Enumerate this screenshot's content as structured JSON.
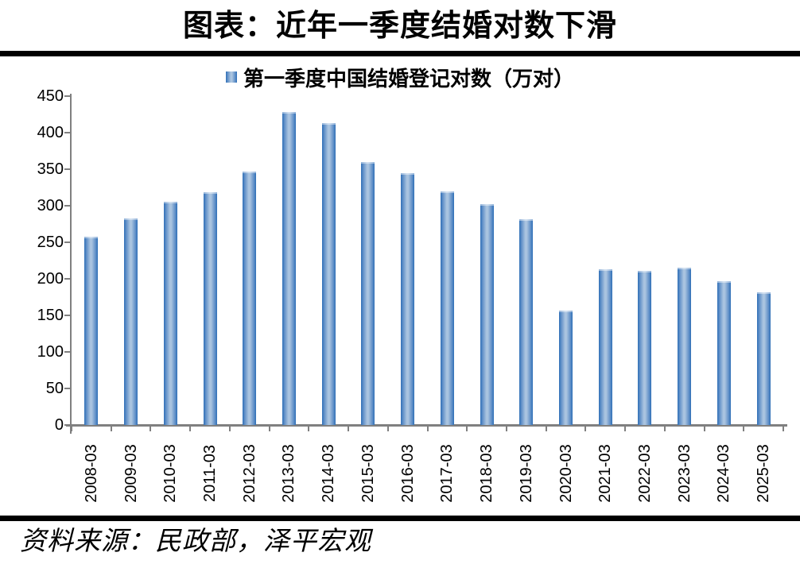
{
  "title": "图表：近年一季度结婚对数下滑",
  "legend": {
    "marker_icon": "blue-gradient-square",
    "label": "第一季度中国结婚登记对数（万对）"
  },
  "source": "资料来源：民政部，泽平宏观",
  "colors": {
    "bar_edge": "#2e6fb7",
    "bar_light": "#aac4e0",
    "bar_mid": "#5b8cc6",
    "axis": "#808080",
    "rule": "#000000",
    "text": "#000000",
    "background": "#ffffff"
  },
  "chart_data": {
    "type": "bar",
    "title": "图表：近年一季度结婚对数下滑",
    "legend_entries": [
      "第一季度中国结婚登记对数（万对）"
    ],
    "legend_position": "top",
    "grid": false,
    "xlabel": "",
    "ylabel": "",
    "ylim": [
      0,
      450
    ],
    "ytick_step": 50,
    "ytick_labels": [
      "450",
      "400",
      "350",
      "300",
      "250",
      "200",
      "150",
      "100",
      "50",
      "0"
    ],
    "categories": [
      "2008-03",
      "2009-03",
      "2010-03",
      "2011-03",
      "2012-03",
      "2013-03",
      "2014-03",
      "2015-03",
      "2016-03",
      "2017-03",
      "2018-03",
      "2019-03",
      "2020-03",
      "2021-03",
      "2022-03",
      "2023-03",
      "2024-03",
      "2025-03"
    ],
    "values": [
      258,
      283,
      305,
      318,
      347,
      428,
      413,
      360,
      345,
      320,
      302,
      281,
      156,
      213,
      211,
      215,
      197,
      181
    ]
  }
}
